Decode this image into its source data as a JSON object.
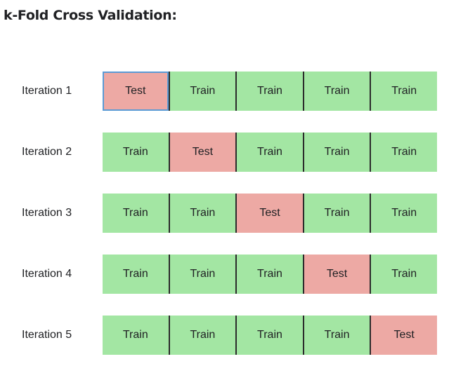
{
  "title": "k-Fold Cross Validation:",
  "colors": {
    "train": "#a3e6a3",
    "test": "#eda9a4",
    "divider": "#2b2b2b",
    "selection": "#5b9bd5"
  },
  "iterations": [
    {
      "label": "Iteration 1",
      "folds": [
        "Test",
        "Train",
        "Train",
        "Train",
        "Train"
      ]
    },
    {
      "label": "Iteration 2",
      "folds": [
        "Train",
        "Test",
        "Train",
        "Train",
        "Train"
      ]
    },
    {
      "label": "Iteration 3",
      "folds": [
        "Train",
        "Train",
        "Test",
        "Train",
        "Train"
      ]
    },
    {
      "label": "Iteration 4",
      "folds": [
        "Train",
        "Train",
        "Train",
        "Test",
        "Train"
      ]
    },
    {
      "label": "Iteration 5",
      "folds": [
        "Train",
        "Train",
        "Train",
        "Train",
        "Test"
      ]
    }
  ]
}
